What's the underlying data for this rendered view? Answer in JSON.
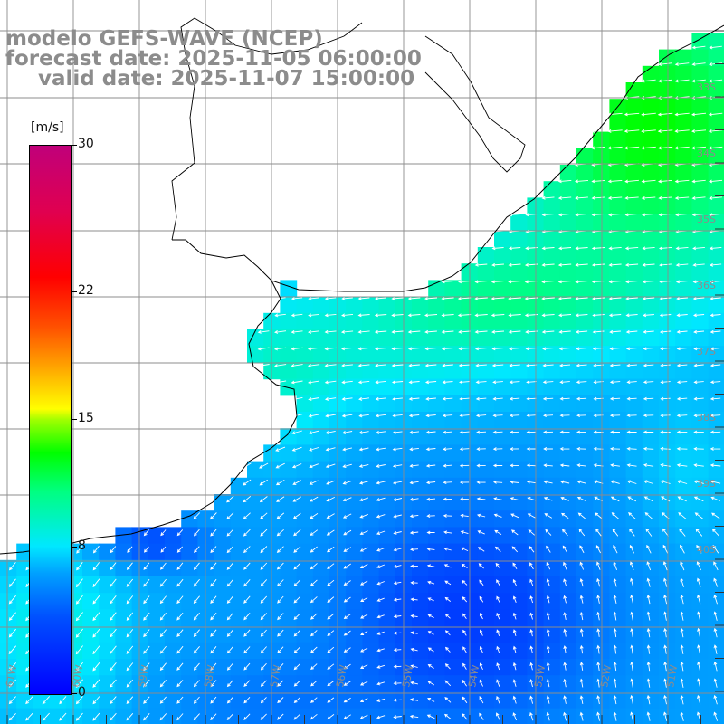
{
  "title": {
    "line1": "modelo GEFS-WAVE (NCEP)",
    "line2": "forecast date: 2025-11-05 06:00:00",
    "line3": "valid date: 2025-11-07 15:00:00"
  },
  "colorbar": {
    "unit": "[m/s]",
    "min": 0,
    "max": 30,
    "ticks": [
      "30",
      "22",
      "15",
      "8",
      "0"
    ],
    "tick_values": [
      30,
      22,
      15,
      8,
      0
    ]
  },
  "grid": {
    "lat_labels": [
      "33S",
      "34S",
      "35S",
      "36S",
      "37S",
      "38S",
      "39S",
      "40S"
    ],
    "lon_labels": [
      "61W",
      "60W",
      "59W",
      "58W",
      "57W",
      "56W",
      "55W",
      "54W",
      "53W",
      "52W",
      "51W"
    ]
  },
  "map_data": {
    "field": "wind speed",
    "units": "m/s",
    "colors": {
      "land": "#ffffff",
      "grid": "#8c8c8c",
      "coast": "#000000",
      "arrows": "#ffffff"
    },
    "wind_direction_regions": {
      "north_east": "from east/north-east, 12-14 m/s",
      "central": "from east, 8-10 m/s",
      "south_west": "from north-east, 5-8 m/s",
      "south_east": "from south, 4-7 m/s"
    }
  }
}
